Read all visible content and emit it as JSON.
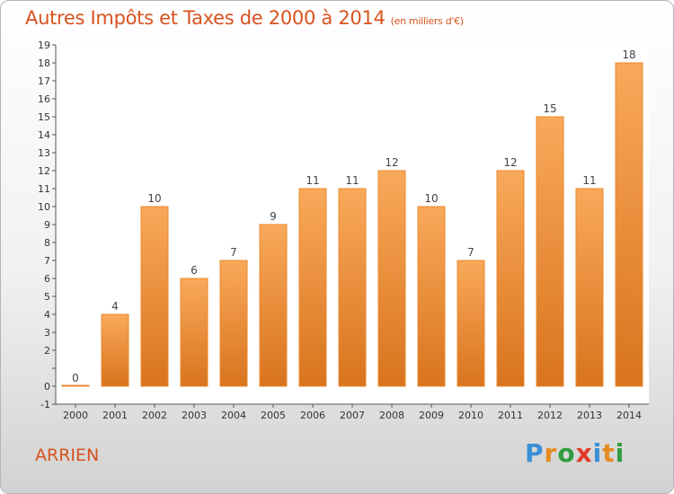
{
  "chart_data": {
    "type": "bar",
    "title": "Autres Impôts et Taxes de 2000 à 2014",
    "subtitle": "(en milliers d'€)",
    "categories": [
      "2000",
      "2001",
      "2002",
      "2003",
      "2004",
      "2005",
      "2006",
      "2007",
      "2008",
      "2009",
      "2010",
      "2011",
      "2012",
      "2013",
      "2014"
    ],
    "values": [
      0,
      4,
      10,
      6,
      7,
      9,
      11,
      11,
      12,
      10,
      7,
      12,
      15,
      11,
      18
    ],
    "ylim": [
      -1,
      19
    ],
    "yticks": [
      "-1",
      "0",
      "",
      "2",
      "3",
      "4",
      "5",
      "6",
      "7",
      "8",
      "9",
      "10",
      "11",
      "12",
      "13",
      "14",
      "15",
      "16",
      "17",
      "18",
      "19"
    ],
    "grid": false,
    "colors": {
      "bar_top": "#f9a95a",
      "bar_bottom": "#d9741e",
      "bar_stroke": "#e8892c"
    }
  },
  "footer": {
    "commune": "ARRIEN",
    "logo_letters": [
      "P",
      "r",
      "o",
      "x",
      "i",
      "t",
      "i"
    ],
    "logo_colors": [
      "#3a8fd6",
      "#e58a1f",
      "#2f9d3f",
      "#e23a2a",
      "#3a8fd6",
      "#e58a1f",
      "#2f9d3f"
    ]
  }
}
